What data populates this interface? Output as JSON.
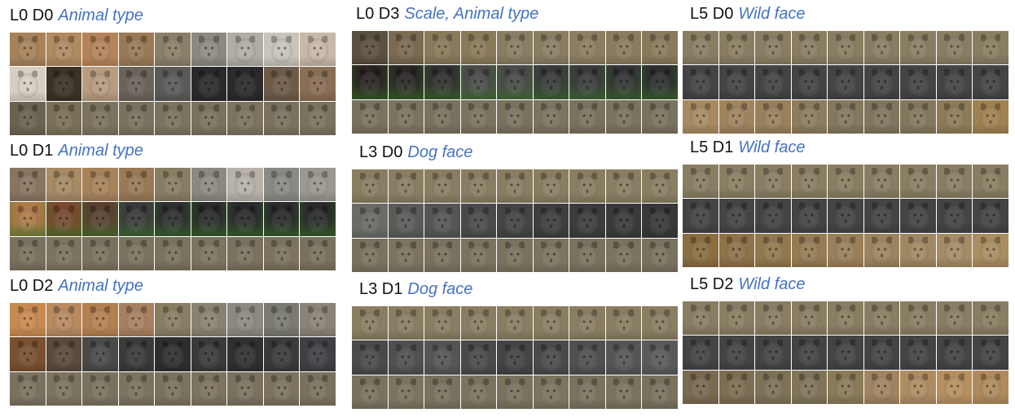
{
  "panels": [
    {
      "id": "l0-d0",
      "code": "L0 D0",
      "attribute": "Animal type",
      "rows": [
        [
          "#a8835a",
          "#b08a60",
          "#b5845a",
          "#9a7a55",
          "#8a8068",
          "#8c8a80",
          "#b0aea4",
          "#c8c4bc",
          "#c7b8a8"
        ],
        [
          "#d8cfc2",
          "#3a3226",
          "#b79c80",
          "#6b635a",
          "#5a5a58",
          "#2a2a2c",
          "#2a2a2c",
          "#6e5a48",
          "#8a6e55"
        ],
        [
          "#6b6250",
          "#7a7058",
          "#7c735e",
          "#7a725e",
          "#7b735e",
          "#7a725d",
          "#7c745f",
          "#7a725e",
          "#7b735e"
        ]
      ]
    },
    {
      "id": "l0-d1",
      "code": "L0 D1",
      "attribute": "Animal type",
      "rows": [
        [
          "#8a7560",
          "#a88a65",
          "#a8835a",
          "#9a7a55",
          "#8a7e62",
          "#8c8a80",
          "#b8b2a8",
          "#8a8a84",
          "#9a9890"
        ],
        [
          "#b07a4a",
          "#7a4a30",
          "#5a4030",
          "#3a3a3a",
          "#2e2e30",
          "#2a2a2c",
          "#2a2a2c",
          "#2a2a2c",
          "#2a2a2c"
        ],
        [
          "#7a725e",
          "#7c745f",
          "#7a725e",
          "#7b735e",
          "#7a725d",
          "#7c745f",
          "#7a725e",
          "#7b735e",
          "#7a725e"
        ]
      ],
      "grass_row": 1
    },
    {
      "id": "l0-d2",
      "code": "L0 D2",
      "attribute": "Animal type",
      "rows": [
        [
          "#c88a50",
          "#b88a60",
          "#b58050",
          "#a88060",
          "#8a7e62",
          "#8a8270",
          "#8c8a80",
          "#7a7a70",
          "#8a8478"
        ],
        [
          "#7a5030",
          "#5a4a3a",
          "#4a4a48",
          "#3a3a3a",
          "#2e2e30",
          "#3a3a3a",
          "#303032",
          "#3a3a3c",
          "#404044"
        ],
        [
          "#7a725e",
          "#7c745f",
          "#7a725e",
          "#7b735e",
          "#7a725d",
          "#7c745f",
          "#7a725e",
          "#7b735e",
          "#7a725e"
        ]
      ]
    },
    {
      "id": "l0-d3",
      "code": "L0 D3",
      "attribute": "Scale, Animal type",
      "rows": [
        [
          "#5a5040",
          "#7a6a50",
          "#8a7a5a",
          "#8a7a58",
          "#8a7e62",
          "#8a7e62",
          "#8c7e60",
          "#8a7c5e",
          "#8a7a5c"
        ],
        [
          "#2a2222",
          "#2a2626",
          "#303030",
          "#4a4a4a",
          "#4a4a4a",
          "#3a3a3c",
          "#3a3a3c",
          "#333336",
          "#2e2e30"
        ],
        [
          "#7a725e",
          "#7c745f",
          "#7a725e",
          "#7b735e",
          "#7a725d",
          "#7c745f",
          "#7a725e",
          "#7b735e",
          "#7a725e"
        ]
      ],
      "grass_row": 1
    },
    {
      "id": "l3-d0",
      "code": "L3 D0",
      "attribute": "Dog face",
      "rows": [
        [
          "#8a7e62",
          "#8a7e62",
          "#8a7e62",
          "#8a7e62",
          "#8a7e62",
          "#8a7e62",
          "#8a7e62",
          "#8a7e62",
          "#8a7e62"
        ],
        [
          "#6a6a66",
          "#5a5a58",
          "#555556",
          "#4a4a4c",
          "#444446",
          "#3e3e40",
          "#3c3c3e",
          "#3a3a3c",
          "#38383a"
        ],
        [
          "#7a725e",
          "#7c745f",
          "#7a725e",
          "#7b735e",
          "#7a725d",
          "#7c745f",
          "#7a725e",
          "#7b735e",
          "#7a725e"
        ]
      ]
    },
    {
      "id": "l3-d1",
      "code": "L3 D1",
      "attribute": "Dog face",
      "rows": [
        [
          "#8a7e62",
          "#8a7e62",
          "#8a7e62",
          "#8a7e62",
          "#8a7e62",
          "#8a7e62",
          "#8a7e62",
          "#8a7e62",
          "#8a7e62"
        ],
        [
          "#4a4a4c",
          "#505052",
          "#555556",
          "#4a4a4c",
          "#444446",
          "#4a4a4c",
          "#505052",
          "#555558",
          "#5a5a5c"
        ],
        [
          "#7a725e",
          "#7c745f",
          "#7a725e",
          "#7b735e",
          "#7a725d",
          "#7c745f",
          "#7a725e",
          "#7b735e",
          "#7a725e"
        ]
      ]
    },
    {
      "id": "l5-d0",
      "code": "L5 D0",
      "attribute": "Wild face",
      "rows": [
        [
          "#8a7e62",
          "#8a7e62",
          "#8a7e62",
          "#8a7e62",
          "#8a7e62",
          "#8a7e62",
          "#8a7e62",
          "#8a7e62",
          "#8a7e62"
        ],
        [
          "#444446",
          "#444446",
          "#444446",
          "#444446",
          "#444446",
          "#444446",
          "#444446",
          "#444446",
          "#444446"
        ],
        [
          "#a88a60",
          "#a0845e",
          "#98805c",
          "#8e7c5e",
          "#84785e",
          "#80765e",
          "#84785c",
          "#8e7c58",
          "#a08250"
        ]
      ]
    },
    {
      "id": "l5-d1",
      "code": "L5 D1",
      "attribute": "Wild face",
      "rows": [
        [
          "#8a7e62",
          "#8a7e62",
          "#8a7e62",
          "#8a7e62",
          "#8a7e62",
          "#8a7e62",
          "#8a7e62",
          "#8a7e62",
          "#8a7e62"
        ],
        [
          "#444446",
          "#444446",
          "#444446",
          "#444446",
          "#444446",
          "#444446",
          "#444446",
          "#444446",
          "#444446"
        ],
        [
          "#8a6e40",
          "#8e7248",
          "#92784e",
          "#967c54",
          "#9a805a",
          "#9c8460",
          "#a08862",
          "#a48c64",
          "#a88e60"
        ]
      ]
    },
    {
      "id": "l5-d2",
      "code": "L5 D2",
      "attribute": "Wild face",
      "rows": [
        [
          "#8a7e62",
          "#8a7e62",
          "#8a7e62",
          "#8a7e62",
          "#8a7e62",
          "#8a7e62",
          "#8a7e62",
          "#8a7e62",
          "#8a7e62"
        ],
        [
          "#444446",
          "#444446",
          "#444446",
          "#444446",
          "#444446",
          "#444446",
          "#444446",
          "#444446",
          "#444446"
        ],
        [
          "#7a6a50",
          "#7c6e52",
          "#7e7256",
          "#80755a",
          "#8a7a58",
          "#a08462",
          "#ae8c62",
          "#b89060",
          "#b08a5c"
        ]
      ]
    }
  ]
}
